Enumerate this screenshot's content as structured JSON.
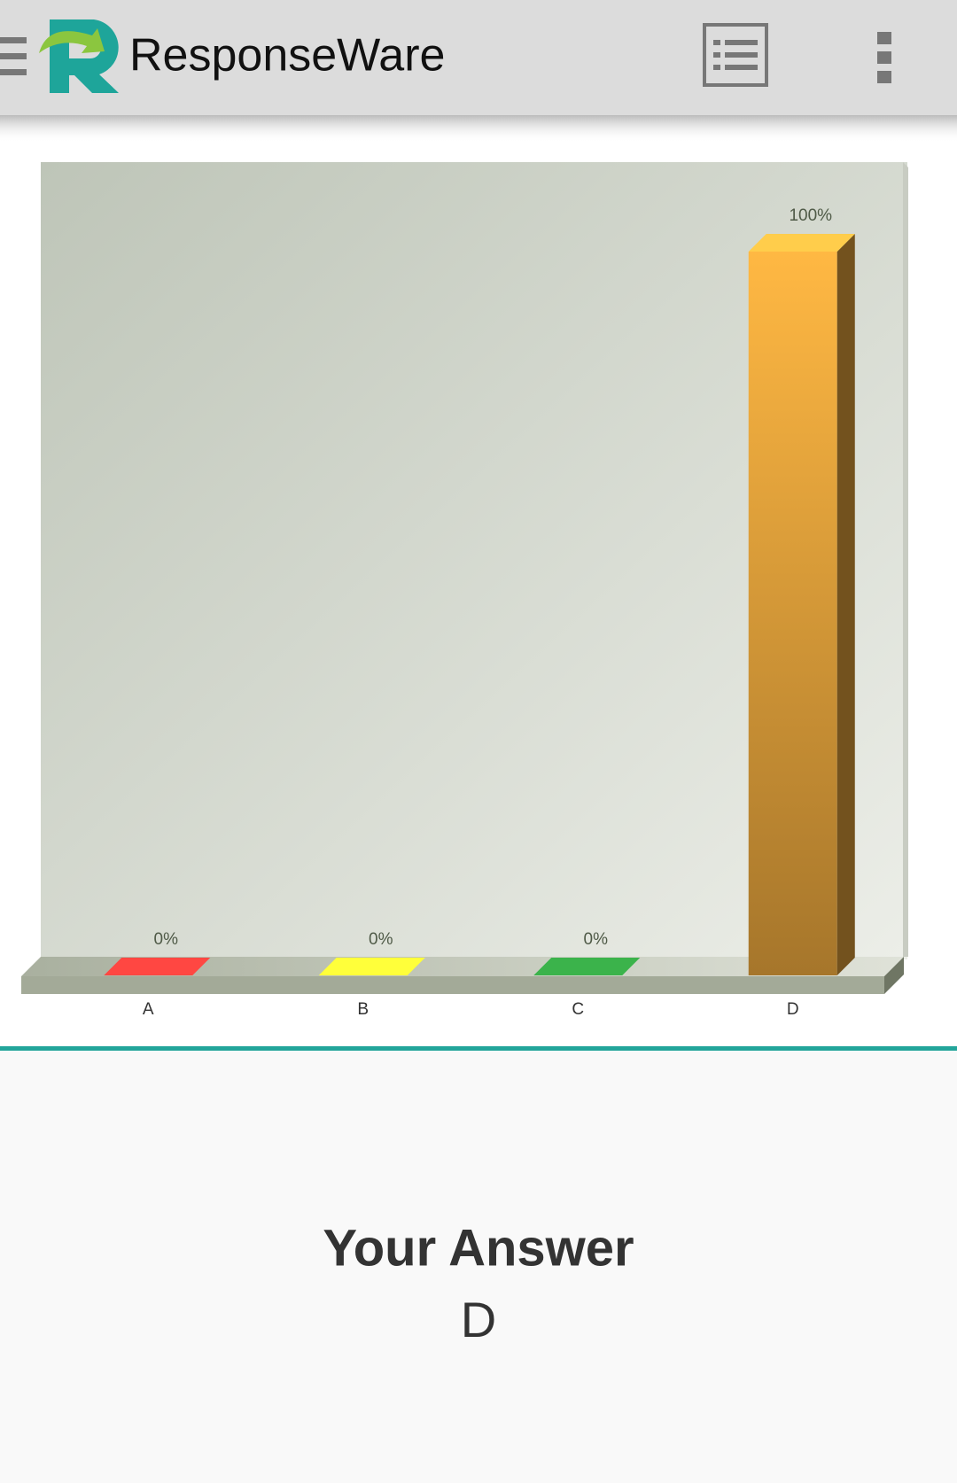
{
  "app_bar": {
    "title": "ResponseWare"
  },
  "chart_data": {
    "type": "bar",
    "categories": [
      "A",
      "B",
      "C",
      "D"
    ],
    "values": [
      0,
      0,
      0,
      100
    ],
    "value_labels": [
      "0%",
      "0%",
      "0%",
      "100%"
    ],
    "colors": [
      "#e53935",
      "#dada2e",
      "#2f8f3c",
      "#e6a43c"
    ],
    "ylim": [
      0,
      100
    ]
  },
  "answer": {
    "heading": "Your Answer",
    "value": "D"
  }
}
